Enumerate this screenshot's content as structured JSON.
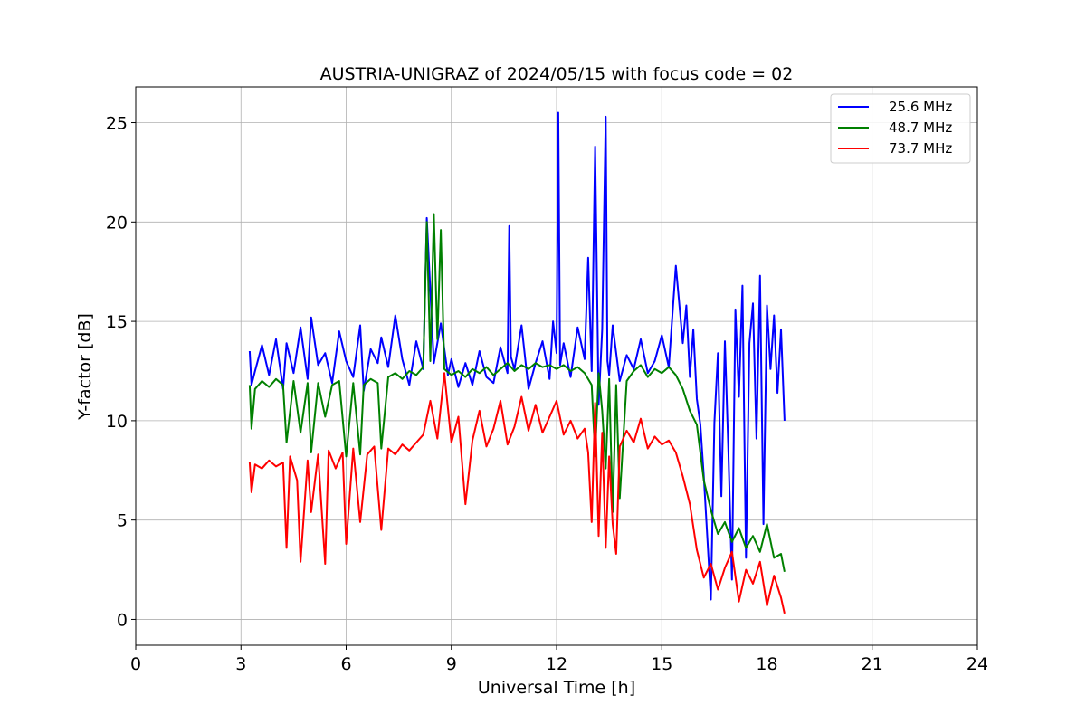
{
  "chart_data": {
    "type": "line",
    "title": "AUSTRIA-UNIGRAZ of 2024/05/15 with focus code = 02",
    "xlabel": "Universal Time [h]",
    "ylabel": "Y-factor [dB]",
    "xlim": [
      0,
      24
    ],
    "ylim": [
      -1.3,
      26.8
    ],
    "xticks": [
      0,
      3,
      6,
      9,
      12,
      15,
      18,
      21,
      24
    ],
    "yticks": [
      0,
      5,
      10,
      15,
      20,
      25
    ],
    "x_tick_labels": [
      "0",
      "3",
      "6",
      "9",
      "12",
      "15",
      "18",
      "21",
      "24"
    ],
    "y_tick_labels": [
      "0",
      "5",
      "10",
      "15",
      "20",
      "25"
    ],
    "grid": true,
    "legend_position": "top-right",
    "series": [
      {
        "name": "25.6 MHz",
        "color": "#0000ff",
        "x": [
          3.25,
          3.3,
          3.4,
          3.6,
          3.8,
          4.0,
          4.2,
          4.3,
          4.5,
          4.7,
          4.9,
          5.0,
          5.2,
          5.4,
          5.6,
          5.8,
          6.0,
          6.2,
          6.4,
          6.5,
          6.7,
          6.9,
          7.0,
          7.2,
          7.4,
          7.6,
          7.8,
          8.0,
          8.2,
          8.3,
          8.5,
          8.7,
          8.9,
          9.0,
          9.2,
          9.4,
          9.6,
          9.8,
          10.0,
          10.2,
          10.4,
          10.6,
          10.65,
          10.7,
          10.8,
          11.0,
          11.2,
          11.4,
          11.6,
          11.8,
          11.9,
          12.0,
          12.05,
          12.1,
          12.2,
          12.4,
          12.6,
          12.8,
          12.9,
          13.0,
          13.1,
          13.2,
          13.3,
          13.4,
          13.45,
          13.5,
          13.6,
          13.8,
          14.0,
          14.2,
          14.4,
          14.6,
          14.8,
          15.0,
          15.2,
          15.4,
          15.6,
          15.7,
          15.8,
          15.9,
          16.0,
          16.1,
          16.2,
          16.3,
          16.4,
          16.5,
          16.6,
          16.7,
          16.8,
          16.9,
          17.0,
          17.1,
          17.2,
          17.3,
          17.4,
          17.5,
          17.6,
          17.7,
          17.8,
          17.9,
          18.0,
          18.1,
          18.2,
          18.3,
          18.4,
          18.5
        ],
        "y": [
          13.5,
          11.8,
          12.5,
          13.8,
          12.3,
          14.1,
          11.6,
          13.9,
          12.4,
          14.7,
          12.1,
          15.2,
          12.8,
          13.4,
          11.9,
          14.5,
          13.0,
          12.2,
          14.8,
          11.5,
          13.6,
          12.9,
          14.2,
          12.7,
          15.3,
          13.1,
          11.8,
          14.0,
          12.6,
          20.2,
          12.9,
          14.9,
          12.3,
          13.1,
          11.7,
          12.9,
          11.8,
          13.5,
          12.2,
          11.9,
          13.7,
          12.4,
          19.8,
          13.2,
          12.6,
          14.8,
          11.6,
          12.9,
          14.0,
          12.1,
          15.0,
          13.4,
          25.5,
          12.8,
          13.9,
          12.2,
          14.7,
          13.1,
          18.2,
          12.5,
          23.8,
          10.8,
          14.6,
          25.3,
          13.0,
          12.3,
          14.8,
          12.0,
          13.3,
          12.6,
          14.1,
          12.4,
          13.0,
          14.3,
          12.7,
          17.8,
          13.9,
          15.8,
          12.2,
          14.6,
          11.1,
          9.8,
          7.2,
          4.1,
          1.0,
          9.9,
          13.4,
          6.2,
          14.0,
          8.4,
          2.0,
          15.6,
          11.2,
          16.8,
          3.1,
          13.9,
          15.9,
          9.1,
          17.3,
          4.8,
          15.8,
          12.6,
          15.3,
          11.4,
          14.6,
          10.0
        ]
      },
      {
        "name": "48.7 MHz",
        "color": "#008000",
        "x": [
          3.25,
          3.3,
          3.4,
          3.6,
          3.8,
          4.0,
          4.2,
          4.3,
          4.5,
          4.7,
          4.9,
          5.0,
          5.2,
          5.4,
          5.6,
          5.8,
          6.0,
          6.2,
          6.4,
          6.5,
          6.7,
          6.9,
          7.0,
          7.2,
          7.4,
          7.6,
          7.8,
          8.0,
          8.2,
          8.3,
          8.4,
          8.5,
          8.6,
          8.7,
          8.8,
          9.0,
          9.2,
          9.4,
          9.6,
          9.8,
          10.0,
          10.2,
          10.4,
          10.6,
          10.8,
          11.0,
          11.2,
          11.4,
          11.6,
          11.8,
          12.0,
          12.2,
          12.4,
          12.6,
          12.8,
          13.0,
          13.1,
          13.2,
          13.3,
          13.4,
          13.5,
          13.6,
          13.7,
          13.8,
          14.0,
          14.2,
          14.4,
          14.6,
          14.8,
          15.0,
          15.2,
          15.4,
          15.6,
          15.8,
          16.0,
          16.2,
          16.4,
          16.6,
          16.8,
          17.0,
          17.2,
          17.4,
          17.6,
          17.8,
          18.0,
          18.2,
          18.4,
          18.5
        ],
        "y": [
          11.8,
          9.6,
          11.6,
          12.0,
          11.7,
          12.1,
          11.8,
          8.9,
          12.0,
          9.4,
          11.9,
          8.4,
          11.9,
          10.2,
          11.8,
          12.0,
          8.2,
          11.9,
          8.3,
          11.8,
          12.1,
          11.9,
          8.6,
          12.2,
          12.4,
          12.1,
          12.5,
          12.3,
          12.7,
          20.0,
          13.0,
          20.4,
          14.1,
          19.6,
          12.6,
          12.3,
          12.5,
          12.2,
          12.6,
          12.4,
          12.7,
          12.3,
          12.6,
          12.9,
          12.5,
          12.8,
          12.6,
          12.9,
          12.7,
          12.8,
          12.6,
          12.8,
          12.5,
          12.7,
          12.4,
          11.8,
          8.2,
          12.4,
          10.5,
          7.6,
          12.1,
          5.4,
          11.8,
          6.1,
          12.0,
          12.5,
          12.8,
          12.2,
          12.6,
          12.4,
          12.7,
          12.3,
          11.6,
          10.5,
          9.8,
          7.0,
          5.5,
          4.3,
          4.9,
          3.9,
          4.6,
          3.6,
          4.2,
          3.4,
          4.8,
          3.1,
          3.3,
          2.4
        ]
      },
      {
        "name": "73.7 MHz",
        "color": "#ff0000",
        "x": [
          3.25,
          3.3,
          3.4,
          3.6,
          3.8,
          4.0,
          4.2,
          4.3,
          4.4,
          4.6,
          4.7,
          4.9,
          5.0,
          5.2,
          5.4,
          5.5,
          5.7,
          5.9,
          6.0,
          6.2,
          6.4,
          6.6,
          6.8,
          7.0,
          7.2,
          7.4,
          7.6,
          7.8,
          8.0,
          8.2,
          8.4,
          8.6,
          8.8,
          9.0,
          9.2,
          9.4,
          9.6,
          9.8,
          10.0,
          10.2,
          10.4,
          10.6,
          10.8,
          11.0,
          11.2,
          11.4,
          11.6,
          11.8,
          12.0,
          12.2,
          12.4,
          12.6,
          12.8,
          12.9,
          13.0,
          13.1,
          13.2,
          13.3,
          13.4,
          13.5,
          13.6,
          13.7,
          13.8,
          14.0,
          14.2,
          14.4,
          14.6,
          14.8,
          15.0,
          15.2,
          15.4,
          15.6,
          15.8,
          16.0,
          16.2,
          16.4,
          16.6,
          16.8,
          17.0,
          17.2,
          17.4,
          17.6,
          17.8,
          18.0,
          18.2,
          18.4,
          18.5
        ],
        "y": [
          7.9,
          6.4,
          7.8,
          7.6,
          8.0,
          7.7,
          7.9,
          3.6,
          8.2,
          7.0,
          2.9,
          8.0,
          5.4,
          8.3,
          2.8,
          8.5,
          7.6,
          8.4,
          3.8,
          8.6,
          4.9,
          8.3,
          8.7,
          4.5,
          8.6,
          8.3,
          8.8,
          8.5,
          8.9,
          9.3,
          11.0,
          9.1,
          12.4,
          8.9,
          10.2,
          5.8,
          9.0,
          10.5,
          8.7,
          9.6,
          11.0,
          8.8,
          9.7,
          11.2,
          9.5,
          10.8,
          9.4,
          10.2,
          11.0,
          9.3,
          10.0,
          9.1,
          9.6,
          8.4,
          4.9,
          10.9,
          4.2,
          9.4,
          3.6,
          8.2,
          4.8,
          3.3,
          8.7,
          9.5,
          8.9,
          10.1,
          8.6,
          9.2,
          8.8,
          9.0,
          8.4,
          7.2,
          5.8,
          3.5,
          2.1,
          2.8,
          1.5,
          2.6,
          3.4,
          0.9,
          2.5,
          1.8,
          2.9,
          0.7,
          2.2,
          1.1,
          0.3
        ]
      }
    ]
  }
}
